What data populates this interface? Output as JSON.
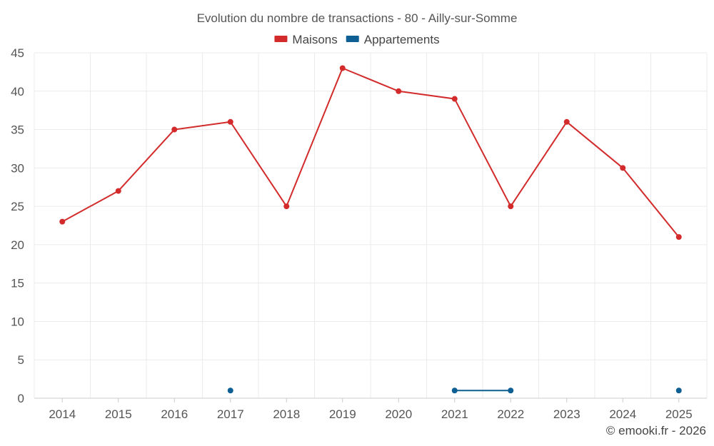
{
  "chart_data": {
    "type": "line",
    "title": "Evolution du nombre de transactions - 80 - Ailly-sur-Somme",
    "categories": [
      "2014",
      "2015",
      "2016",
      "2017",
      "2018",
      "2019",
      "2020",
      "2021",
      "2022",
      "2023",
      "2024",
      "2025"
    ],
    "series": [
      {
        "name": "Maisons",
        "color": "#d32b2b",
        "values": [
          23,
          27,
          35,
          36,
          25,
          43,
          40,
          39,
          25,
          36,
          30,
          21
        ]
      },
      {
        "name": "Appartements",
        "color": "#0d5f94",
        "values": [
          null,
          null,
          null,
          1,
          null,
          null,
          null,
          1,
          1,
          null,
          null,
          1
        ]
      }
    ],
    "yticks": [
      0,
      5,
      10,
      15,
      20,
      25,
      30,
      35,
      40,
      45
    ],
    "ylim": [
      0,
      45
    ],
    "xlabel": "",
    "ylabel": "",
    "grid": true,
    "legend_position": "top-center"
  },
  "credit": "© emooki.fr - 2026"
}
